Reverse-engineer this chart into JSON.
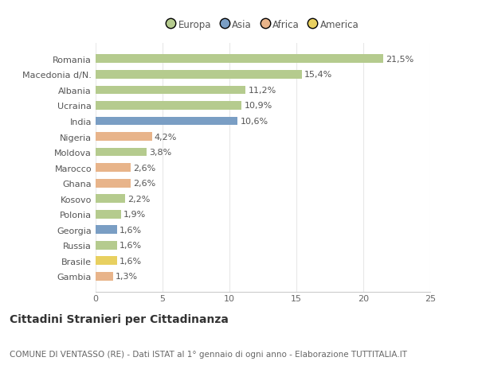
{
  "countries": [
    "Romania",
    "Macedonia d/N.",
    "Albania",
    "Ucraina",
    "India",
    "Nigeria",
    "Moldova",
    "Marocco",
    "Ghana",
    "Kosovo",
    "Polonia",
    "Georgia",
    "Russia",
    "Brasile",
    "Gambia"
  ],
  "values": [
    21.5,
    15.4,
    11.2,
    10.9,
    10.6,
    4.2,
    3.8,
    2.6,
    2.6,
    2.2,
    1.9,
    1.6,
    1.6,
    1.6,
    1.3
  ],
  "labels": [
    "21,5%",
    "15,4%",
    "11,2%",
    "10,9%",
    "10,6%",
    "4,2%",
    "3,8%",
    "2,6%",
    "2,6%",
    "2,2%",
    "1,9%",
    "1,6%",
    "1,6%",
    "1,6%",
    "1,3%"
  ],
  "colors": [
    "#b5cb8e",
    "#b5cb8e",
    "#b5cb8e",
    "#b5cb8e",
    "#7a9ec4",
    "#e8b48a",
    "#b5cb8e",
    "#e8b48a",
    "#e8b48a",
    "#b5cb8e",
    "#b5cb8e",
    "#7a9ec4",
    "#b5cb8e",
    "#e8d060",
    "#e8b48a"
  ],
  "continent_colors": {
    "Europa": "#b5cb8e",
    "Asia": "#7a9ec4",
    "Africa": "#e8b48a",
    "America": "#e8d060"
  },
  "title": "Cittadini Stranieri per Cittadinanza",
  "subtitle": "COMUNE DI VENTASSO (RE) - Dati ISTAT al 1° gennaio di ogni anno - Elaborazione TUTTITALIA.IT",
  "xlim": [
    0,
    25
  ],
  "xticks": [
    0,
    5,
    10,
    15,
    20,
    25
  ],
  "bg_color": "#ffffff",
  "grid_color": "#e8e8e8",
  "bar_height": 0.55,
  "title_fontsize": 10,
  "subtitle_fontsize": 7.5,
  "label_fontsize": 8,
  "tick_fontsize": 8,
  "legend_fontsize": 8.5
}
